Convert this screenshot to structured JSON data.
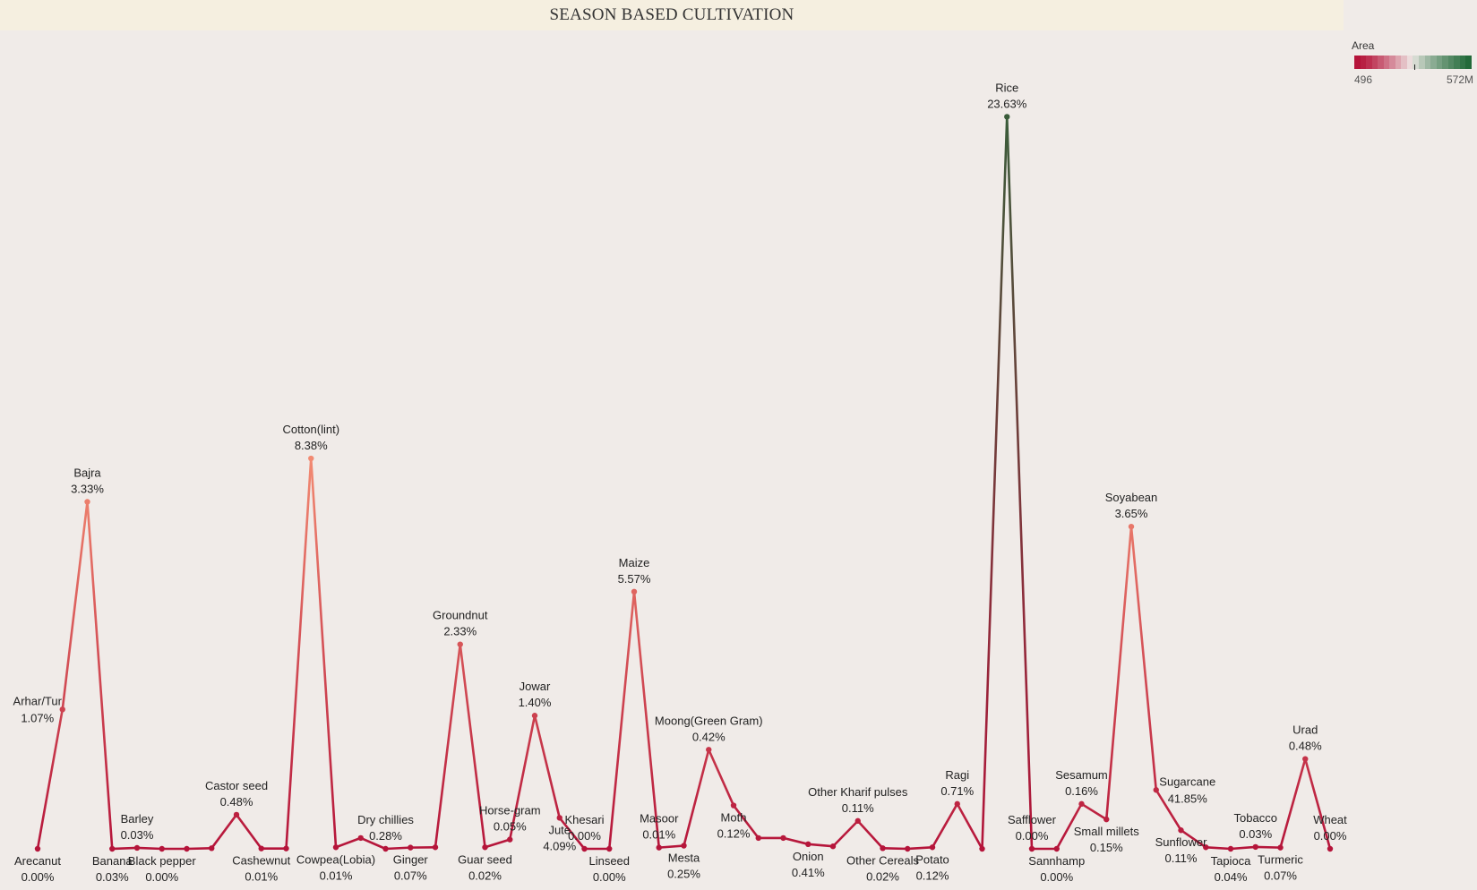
{
  "title": "SEASON BASED CULTIVATION",
  "legend": {
    "title": "Area",
    "min_label": "496",
    "max_label": "572M",
    "low_color": "#b5143a",
    "mid_color": "#f0ebe8",
    "high_color": "#236a3a"
  },
  "chart_data": {
    "type": "line",
    "title": "SEASON BASED CULTIVATION",
    "color_measure": "Area",
    "ylim": [
      0,
      25
    ],
    "points": [
      {
        "name": "Arecanut",
        "label": "0.00%",
        "value": 0.0,
        "pos": "below"
      },
      {
        "name": "Arhar/Tur",
        "label": "1.07%",
        "value": 4.5,
        "pos": "left"
      },
      {
        "name": "Bajra",
        "label": "3.33%",
        "value": 11.2,
        "pos": "above"
      },
      {
        "name": "Banana",
        "label": "0.03%",
        "value": 0.0,
        "pos": "below"
      },
      {
        "name": "Barley",
        "label": "0.03%",
        "value": 0.03,
        "pos": "above"
      },
      {
        "name": "Black pepper",
        "label": "0.00%",
        "value": 0.0,
        "pos": "below"
      },
      {
        "name": "",
        "label": "",
        "value": 0.0,
        "pos": "none"
      },
      {
        "name": "",
        "label": "",
        "value": 0.02,
        "pos": "none"
      },
      {
        "name": "Castor seed",
        "label": "0.48%",
        "value": 1.1,
        "pos": "above"
      },
      {
        "name": "Cashewnut",
        "label": "0.01%",
        "value": 0.01,
        "pos": "below"
      },
      {
        "name": "",
        "label": "",
        "value": 0.01,
        "pos": "none"
      },
      {
        "name": "Cotton(lint)",
        "label": "8.38%",
        "value": 12.6,
        "pos": "above"
      },
      {
        "name": "Cowpea(Lobia)",
        "label": "0.01%",
        "value": 0.05,
        "pos": "below"
      },
      {
        "name": "",
        "label": "",
        "value": 0.35,
        "pos": "none"
      },
      {
        "name": "Dry chillies",
        "label": "0.28%",
        "value": 0.0,
        "pos": "above"
      },
      {
        "name": "Ginger",
        "label": "0.07%",
        "value": 0.04,
        "pos": "below"
      },
      {
        "name": "",
        "label": "",
        "value": 0.05,
        "pos": "none"
      },
      {
        "name": "Groundnut",
        "label": "2.33%",
        "value": 6.6,
        "pos": "above"
      },
      {
        "name": "Guar seed",
        "label": "0.02%",
        "value": 0.05,
        "pos": "below"
      },
      {
        "name": "Horse-gram",
        "label": "0.05%",
        "value": 0.3,
        "pos": "above"
      },
      {
        "name": "Jowar",
        "label": "1.40%",
        "value": 4.3,
        "pos": "above"
      },
      {
        "name": "Jute",
        "label": "4.09%",
        "value": 1.0,
        "pos": "below"
      },
      {
        "name": "Khesari",
        "label": "0.00%",
        "value": 0.0,
        "pos": "above"
      },
      {
        "name": "Linseed",
        "label": "0.00%",
        "value": 0.0,
        "pos": "below"
      },
      {
        "name": "Maize",
        "label": "5.57%",
        "value": 8.3,
        "pos": "above"
      },
      {
        "name": "Masoor",
        "label": "0.01%",
        "value": 0.04,
        "pos": "above"
      },
      {
        "name": "Mesta",
        "label": "0.25%",
        "value": 0.1,
        "pos": "below"
      },
      {
        "name": "Moong(Green Gram)",
        "label": "0.42%",
        "value": 3.2,
        "pos": "above"
      },
      {
        "name": "Moth",
        "label": "0.12%",
        "value": 1.4,
        "pos": "below"
      },
      {
        "name": "",
        "label": "",
        "value": 0.35,
        "pos": "none"
      },
      {
        "name": "",
        "label": "",
        "value": 0.35,
        "pos": "none"
      },
      {
        "name": "Onion",
        "label": "0.41%",
        "value": 0.15,
        "pos": "below"
      },
      {
        "name": "",
        "label": "",
        "value": 0.08,
        "pos": "none"
      },
      {
        "name": "Other Kharif pulses",
        "label": "0.11%",
        "value": 0.9,
        "pos": "above"
      },
      {
        "name": "Other Cereals",
        "label": "0.02%",
        "value": 0.02,
        "pos": "below"
      },
      {
        "name": "",
        "label": "",
        "value": 0.0,
        "pos": "none"
      },
      {
        "name": "Potato",
        "label": "0.12%",
        "value": 0.05,
        "pos": "below"
      },
      {
        "name": "Ragi",
        "label": "0.71%",
        "value": 1.45,
        "pos": "above"
      },
      {
        "name": "",
        "label": "",
        "value": 0.0,
        "pos": "none"
      },
      {
        "name": "Rice",
        "label": "23.63%",
        "value": 23.63,
        "pos": "above"
      },
      {
        "name": "Safflower",
        "label": "0.00%",
        "value": 0.0,
        "pos": "above"
      },
      {
        "name": "Sannhamp",
        "label": "0.00%",
        "value": 0.0,
        "pos": "below"
      },
      {
        "name": "Sesamum",
        "label": "0.16%",
        "value": 1.45,
        "pos": "above"
      },
      {
        "name": "Small millets",
        "label": "0.15%",
        "value": 0.95,
        "pos": "below"
      },
      {
        "name": "Soyabean",
        "label": "3.65%",
        "value": 10.4,
        "pos": "above"
      },
      {
        "name": "Sugarcane",
        "label": "41.85%",
        "value": 1.9,
        "pos": "right"
      },
      {
        "name": "Sunflower",
        "label": "0.11%",
        "value": 0.6,
        "pos": "below"
      },
      {
        "name": "",
        "label": "",
        "value": 0.05,
        "pos": "none"
      },
      {
        "name": "Tapioca",
        "label": "0.04%",
        "value": 0.0,
        "pos": "below"
      },
      {
        "name": "Tobacco",
        "label": "0.03%",
        "value": 0.06,
        "pos": "above"
      },
      {
        "name": "Turmeric",
        "label": "0.07%",
        "value": 0.04,
        "pos": "below"
      },
      {
        "name": "Urad",
        "label": "0.48%",
        "value": 2.9,
        "pos": "above"
      },
      {
        "name": "Wheat",
        "label": "0.00%",
        "value": 0.0,
        "pos": "above"
      }
    ]
  }
}
